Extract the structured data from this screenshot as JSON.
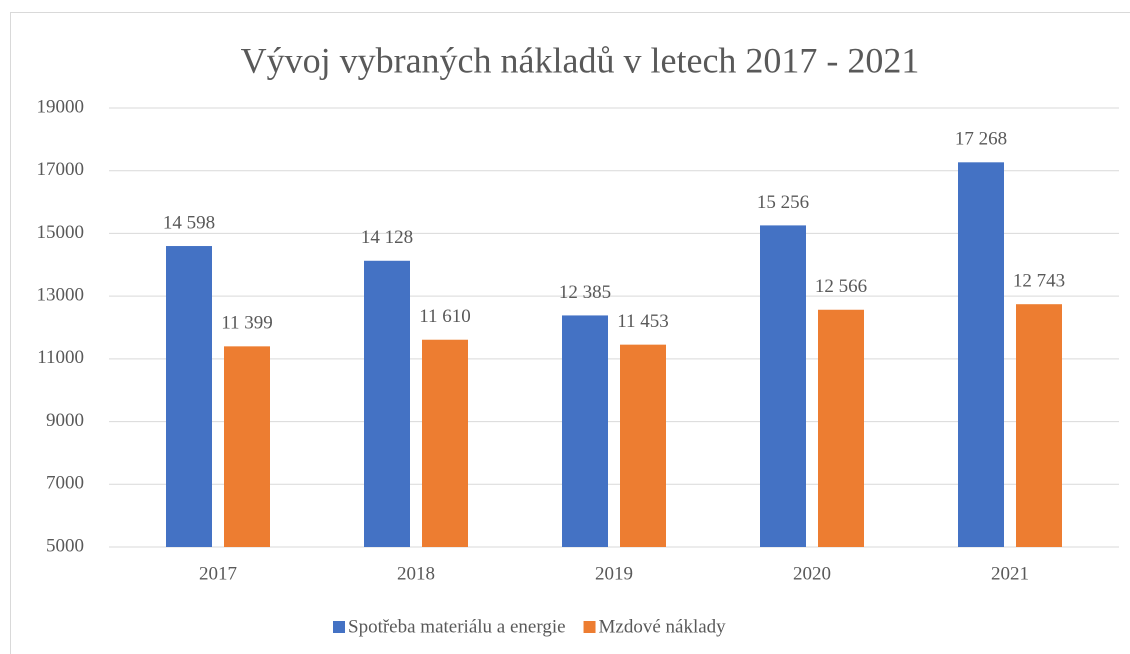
{
  "chart_data": {
    "type": "bar",
    "title": "Vývoj vybraných nákladů v letech 2017 - 2021",
    "categories": [
      "2017",
      "2018",
      "2019",
      "2020",
      "2021"
    ],
    "series": [
      {
        "name": "Spotřeba materiálu a energie",
        "color": "#4472c4",
        "values": [
          14598,
          14128,
          12385,
          15256,
          17268
        ],
        "value_labels": [
          "14 598",
          "14 128",
          "12 385",
          "15 256",
          "17 268"
        ]
      },
      {
        "name": "Mzdové náklady",
        "color": "#ed7d31",
        "values": [
          11399,
          11610,
          11453,
          12566,
          12743
        ],
        "value_labels": [
          "11 399",
          "11 610",
          "11 453",
          "12 566",
          "12 743"
        ]
      }
    ],
    "ylim": [
      5000,
      19000
    ],
    "yticks": [
      5000,
      7000,
      9000,
      11000,
      13000,
      15000,
      17000,
      19000
    ],
    "grid": true,
    "legend": "bottom"
  }
}
